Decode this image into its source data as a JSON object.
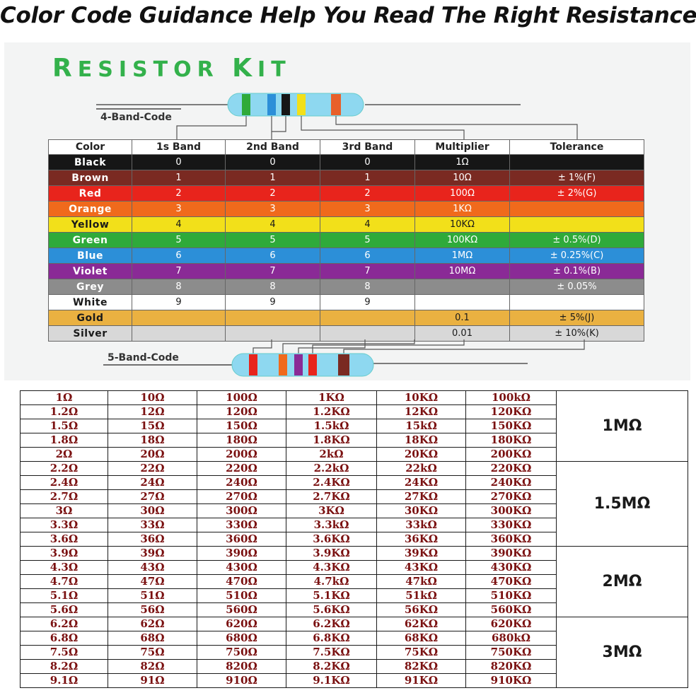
{
  "headline": "Color Code Guidance Help You Read The Right Resistance",
  "kit_title": {
    "first_big": "R",
    "first_rest": "ESISTOR ",
    "second_big": "K",
    "second_rest": "IT"
  },
  "four_band_label": "4-Band-Code",
  "five_band_label": "5-Band-Code",
  "colors": {
    "Black": "#161616",
    "Brown": "#7a2a22",
    "Red": "#e8241c",
    "Orange": "#f06a1c",
    "Yellow": "#f2e01a",
    "Green": "#2faa3a",
    "Blue": "#2c8fd8",
    "Violet": "#8a2a96",
    "Grey": "#8c8c8c",
    "White": "#ffffff",
    "Gold": "#eab141",
    "Silver": "#d8d8d8"
  },
  "color_table": {
    "headers": [
      "Color",
      "1s Band",
      "2nd Band",
      "3rd Band",
      "Multiplier",
      "Tolerance"
    ],
    "rows": [
      {
        "name": "Black",
        "b1": "0",
        "b2": "0",
        "b3": "0",
        "mult": "1Ω",
        "tol": ""
      },
      {
        "name": "Brown",
        "b1": "1",
        "b2": "1",
        "b3": "1",
        "mult": "10Ω",
        "tol": "± 1%(F)"
      },
      {
        "name": "Red",
        "b1": "2",
        "b2": "2",
        "b3": "2",
        "mult": "100Ω",
        "tol": "± 2%(G)"
      },
      {
        "name": "Orange",
        "b1": "3",
        "b2": "3",
        "b3": "3",
        "mult": "1KΩ",
        "tol": ""
      },
      {
        "name": "Yellow",
        "b1": "4",
        "b2": "4",
        "b3": "4",
        "mult": "10KΩ",
        "tol": ""
      },
      {
        "name": "Green",
        "b1": "5",
        "b2": "5",
        "b3": "5",
        "mult": "100KΩ",
        "tol": "± 0.5%(D)"
      },
      {
        "name": "Blue",
        "b1": "6",
        "b2": "6",
        "b3": "6",
        "mult": "1MΩ",
        "tol": "± 0.25%(C)"
      },
      {
        "name": "Violet",
        "b1": "7",
        "b2": "7",
        "b3": "7",
        "mult": "10MΩ",
        "tol": "± 0.1%(B)"
      },
      {
        "name": "Grey",
        "b1": "8",
        "b2": "8",
        "b3": "8",
        "mult": "",
        "tol": "± 0.05%"
      },
      {
        "name": "White",
        "b1": "9",
        "b2": "9",
        "b3": "9",
        "mult": "",
        "tol": ""
      },
      {
        "name": "Gold",
        "b1": "",
        "b2": "",
        "b3": "",
        "mult": "0.1",
        "tol": "± 5%(J)"
      },
      {
        "name": "Silver",
        "b1": "",
        "b2": "",
        "b3": "",
        "mult": "0.01",
        "tol": "± 10%(K)"
      }
    ]
  },
  "values_table": {
    "groups": [
      {
        "label": "1MΩ",
        "rows": [
          [
            "1Ω",
            "10Ω",
            "100Ω",
            "1KΩ",
            "10KΩ",
            "100kΩ"
          ],
          [
            "1.2Ω",
            "12Ω",
            "120Ω",
            "1.2KΩ",
            "12KΩ",
            "120KΩ"
          ],
          [
            "1.5Ω",
            "15Ω",
            "150Ω",
            "1.5kΩ",
            "15kΩ",
            "150KΩ"
          ],
          [
            "1.8Ω",
            "18Ω",
            "180Ω",
            "1.8KΩ",
            "18KΩ",
            "180KΩ"
          ],
          [
            "2Ω",
            "20Ω",
            "200Ω",
            "2kΩ",
            "20KΩ",
            "200KΩ"
          ]
        ]
      },
      {
        "label": "1.5MΩ",
        "rows": [
          [
            "2.2Ω",
            "22Ω",
            "220Ω",
            "2.2kΩ",
            "22kΩ",
            "220KΩ"
          ],
          [
            "2.4Ω",
            "24Ω",
            "240Ω",
            "2.4KΩ",
            "24KΩ",
            "240KΩ"
          ],
          [
            "2.7Ω",
            "27Ω",
            "270Ω",
            "2.7KΩ",
            "27KΩ",
            "270KΩ"
          ],
          [
            "3Ω",
            "30Ω",
            "300Ω",
            "3KΩ",
            "30KΩ",
            "300KΩ"
          ],
          [
            "3.3Ω",
            "33Ω",
            "330Ω",
            "3.3kΩ",
            "33kΩ",
            "330KΩ"
          ],
          [
            "3.6Ω",
            "36Ω",
            "360Ω",
            "3.6KΩ",
            "36KΩ",
            "360KΩ"
          ]
        ]
      },
      {
        "label": "2MΩ",
        "rows": [
          [
            "3.9Ω",
            "39Ω",
            "390Ω",
            "3.9KΩ",
            "39KΩ",
            "390KΩ"
          ],
          [
            "4.3Ω",
            "43Ω",
            "430Ω",
            "4.3KΩ",
            "43KΩ",
            "430KΩ"
          ],
          [
            "4.7Ω",
            "47Ω",
            "470Ω",
            "4.7kΩ",
            "47kΩ",
            "470KΩ"
          ],
          [
            "5.1Ω",
            "51Ω",
            "510Ω",
            "5.1KΩ",
            "51kΩ",
            "510KΩ"
          ],
          [
            "5.6Ω",
            "56Ω",
            "560Ω",
            "5.6KΩ",
            "56KΩ",
            "560KΩ"
          ]
        ]
      },
      {
        "label": "3MΩ",
        "rows": [
          [
            "6.2Ω",
            "62Ω",
            "620Ω",
            "6.2KΩ",
            "62KΩ",
            "620KΩ"
          ],
          [
            "6.8Ω",
            "68Ω",
            "680Ω",
            "6.8KΩ",
            "68KΩ",
            "680kΩ"
          ],
          [
            "7.5Ω",
            "75Ω",
            "750Ω",
            "7.5KΩ",
            "75KΩ",
            "750KΩ"
          ],
          [
            "8.2Ω",
            "82Ω",
            "820Ω",
            "8.2KΩ",
            "82KΩ",
            "820KΩ"
          ],
          [
            "9.1Ω",
            "91Ω",
            "910Ω",
            "9.1KΩ",
            "91KΩ",
            "910KΩ"
          ]
        ]
      }
    ]
  }
}
